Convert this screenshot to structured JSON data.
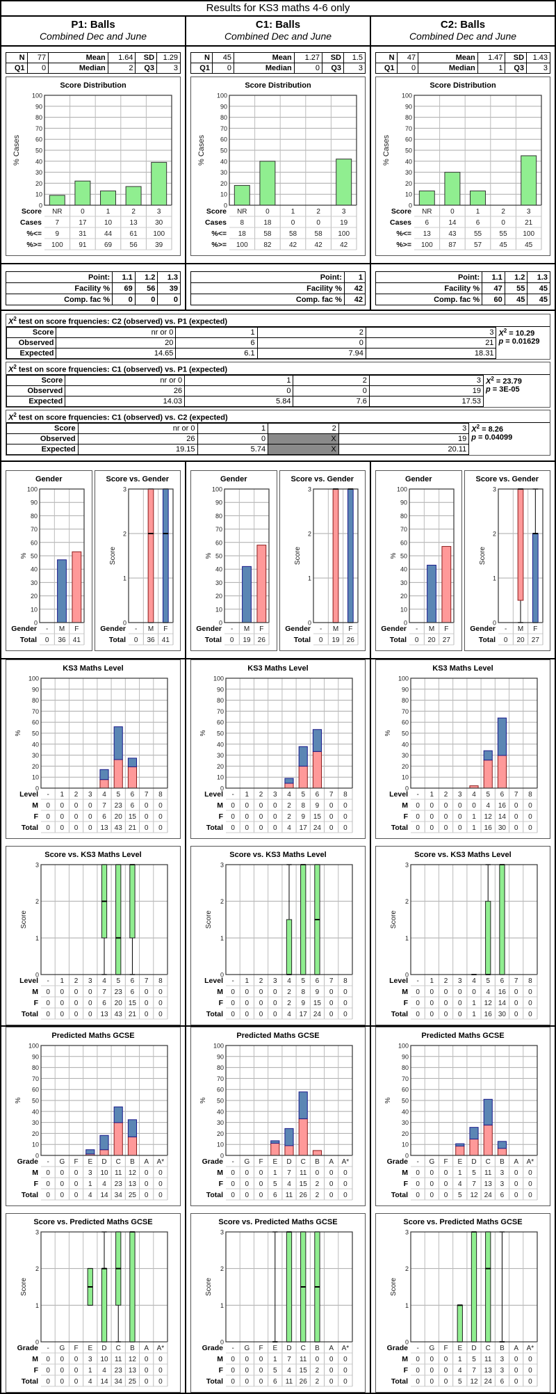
{
  "title": "Results for KS3 maths 4-6 only",
  "colors": {
    "green": "#90ee90",
    "male": "#5b86b4",
    "female": "#ff9999",
    "shade": "#8a8a8a",
    "grid": "#c8c8c8"
  },
  "columns": [
    {
      "id": "p1",
      "title": "P1: Balls",
      "subtitle": "Combined Dec and June",
      "stats": {
        "N": "77",
        "Mean": "1.64",
        "SD": "1.29",
        "Q1": "0",
        "Median": "2",
        "Q3": "3"
      },
      "distribution": {
        "title": "Score Distribution",
        "ylabel": "% Cases",
        "scores": [
          "NR",
          "0",
          "1",
          "2",
          "3"
        ],
        "cases": [
          "7",
          "17",
          "10",
          "13",
          "30"
        ],
        "pct_le": [
          "9",
          "31",
          "44",
          "61",
          "100"
        ],
        "pct_ge": [
          "100",
          "91",
          "69",
          "56",
          "39"
        ],
        "pct": [
          9,
          22,
          13,
          17,
          39
        ]
      },
      "facility": {
        "points": [
          "1.1",
          "1.2",
          "1.3"
        ],
        "facility": [
          "69",
          "56",
          "39"
        ],
        "comp": [
          "0",
          "0",
          "0"
        ]
      },
      "gender": {
        "pct": {
          "-": 0,
          "M": 47,
          "F": 53
        },
        "totals": [
          "0",
          "36",
          "41"
        ],
        "boxes": [
          null,
          {
            "q1": 0,
            "median": 2,
            "q3": 3,
            "min": 0,
            "max": 3
          },
          {
            "q1": 0,
            "median": 2,
            "q3": 3,
            "min": 0,
            "max": 3
          }
        ]
      },
      "ks3": {
        "M": [
          "0",
          "0",
          "0",
          "0",
          "7",
          "23",
          "6",
          "0",
          "0"
        ],
        "F": [
          "0",
          "0",
          "0",
          "0",
          "6",
          "20",
          "15",
          "0",
          "0"
        ],
        "Total": [
          "0",
          "0",
          "0",
          "0",
          "13",
          "43",
          "21",
          "0",
          "0"
        ],
        "boxes": [
          null,
          null,
          null,
          null,
          {
            "q1": 1,
            "median": 2,
            "q3": 3,
            "min": 0,
            "max": 3
          },
          {
            "q1": 0,
            "median": 1,
            "q3": 3,
            "min": 0,
            "max": 3
          },
          {
            "q1": 1,
            "median": 3,
            "q3": 3,
            "min": 0,
            "max": 3
          },
          null,
          null
        ]
      },
      "gcse": {
        "M": [
          "0",
          "0",
          "0",
          "3",
          "10",
          "11",
          "12",
          "0",
          "0"
        ],
        "F": [
          "0",
          "0",
          "0",
          "1",
          "4",
          "23",
          "13",
          "0",
          "0"
        ],
        "Total": [
          "0",
          "0",
          "0",
          "4",
          "14",
          "34",
          "25",
          "0",
          "0"
        ],
        "boxes": [
          null,
          null,
          null,
          {
            "q1": 1,
            "median": 1.5,
            "q3": 2,
            "min": 1,
            "max": 2
          },
          {
            "q1": 0,
            "median": 2,
            "q3": 2,
            "min": 0,
            "max": 3
          },
          {
            "q1": 1,
            "median": 2,
            "q3": 3,
            "min": 0,
            "max": 3
          },
          {
            "q1": 0,
            "median": 3,
            "q3": 3,
            "min": 0,
            "max": 3
          },
          null,
          null
        ]
      }
    },
    {
      "id": "c1",
      "title": "C1: Balls",
      "subtitle": "Combined Dec and June",
      "stats": {
        "N": "45",
        "Mean": "1.27",
        "SD": "1.5",
        "Q1": "0",
        "Median": "0",
        "Q3": "3"
      },
      "distribution": {
        "title": "Score Distribution",
        "ylabel": "% Cases",
        "scores": [
          "NR",
          "0",
          "1",
          "2",
          "3"
        ],
        "cases": [
          "8",
          "18",
          "0",
          "0",
          "19"
        ],
        "pct_le": [
          "18",
          "58",
          "58",
          "58",
          "100"
        ],
        "pct_ge": [
          "100",
          "82",
          "42",
          "42",
          "42"
        ],
        "pct": [
          18,
          40,
          0,
          0,
          42
        ]
      },
      "facility": {
        "points": [
          "1"
        ],
        "facility": [
          "42"
        ],
        "comp": [
          "42"
        ]
      },
      "gender": {
        "pct": {
          "-": 0,
          "M": 42,
          "F": 58
        },
        "totals": [
          "0",
          "19",
          "26"
        ],
        "boxes": [
          null,
          {
            "q1": 0,
            "median": 3,
            "q3": 3,
            "min": 0,
            "max": 3
          },
          {
            "q1": 0,
            "median": 3,
            "q3": 3,
            "min": 0,
            "max": 3
          }
        ]
      },
      "ks3": {
        "M": [
          "0",
          "0",
          "0",
          "0",
          "2",
          "8",
          "9",
          "0",
          "0"
        ],
        "F": [
          "0",
          "0",
          "0",
          "0",
          "2",
          "9",
          "15",
          "0",
          "0"
        ],
        "Total": [
          "0",
          "0",
          "0",
          "0",
          "4",
          "17",
          "24",
          "0",
          "0"
        ],
        "boxes": [
          null,
          null,
          null,
          null,
          {
            "q1": 0,
            "median": 0,
            "q3": 1.5,
            "min": 0,
            "max": 3
          },
          {
            "q1": 0,
            "median": 3,
            "q3": 3,
            "min": 0,
            "max": 3
          },
          {
            "q1": 0,
            "median": 1.5,
            "q3": 3,
            "min": 0,
            "max": 3
          },
          null,
          null
        ]
      },
      "gcse": {
        "M": [
          "0",
          "0",
          "0",
          "1",
          "7",
          "11",
          "0",
          "0",
          "0"
        ],
        "F": [
          "0",
          "0",
          "0",
          "5",
          "4",
          "15",
          "2",
          "0",
          "0"
        ],
        "Total": [
          "0",
          "0",
          "0",
          "6",
          "11",
          "26",
          "2",
          "0",
          "0"
        ],
        "boxes": [
          null,
          null,
          null,
          {
            "q1": 0,
            "median": 0,
            "q3": 0,
            "min": 0,
            "max": 3
          },
          {
            "q1": 0,
            "median": 3,
            "q3": 3,
            "min": 0,
            "max": 3
          },
          {
            "q1": 0,
            "median": 1.5,
            "q3": 3,
            "min": 0,
            "max": 3
          },
          {
            "q1": 0,
            "median": 1.5,
            "q3": 3,
            "min": 0,
            "max": 3
          },
          null,
          null
        ]
      }
    },
    {
      "id": "c2",
      "title": "C2: Balls",
      "subtitle": "Combined Dec and June",
      "stats": {
        "N": "47",
        "Mean": "1.47",
        "SD": "1.43",
        "Q1": "0",
        "Median": "1",
        "Q3": "3"
      },
      "distribution": {
        "title": "Score Distribution",
        "ylabel": "% Cases",
        "scores": [
          "NR",
          "0",
          "1",
          "2",
          "3"
        ],
        "cases": [
          "6",
          "14",
          "6",
          "0",
          "21"
        ],
        "pct_le": [
          "13",
          "43",
          "55",
          "55",
          "100"
        ],
        "pct_ge": [
          "100",
          "87",
          "57",
          "45",
          "45"
        ],
        "pct": [
          13,
          30,
          13,
          0,
          45
        ]
      },
      "facility": {
        "points": [
          "1.1",
          "1.2",
          "1.3"
        ],
        "facility": [
          "47",
          "55",
          "45"
        ],
        "comp": [
          "60",
          "45",
          "45"
        ]
      },
      "gender": {
        "pct": {
          "-": 0,
          "M": 43,
          "F": 57
        },
        "totals": [
          "0",
          "20",
          "27"
        ],
        "boxes": [
          null,
          {
            "q1": 0.5,
            "median": 3,
            "q3": 3,
            "min": 0,
            "max": 3
          },
          {
            "q1": 0,
            "median": 2,
            "q3": 2,
            "min": 0,
            "max": 3
          }
        ]
      },
      "ks3": {
        "M": [
          "0",
          "0",
          "0",
          "0",
          "0",
          "4",
          "16",
          "0",
          "0"
        ],
        "F": [
          "0",
          "0",
          "0",
          "0",
          "1",
          "12",
          "14",
          "0",
          "0"
        ],
        "Total": [
          "0",
          "0",
          "0",
          "0",
          "1",
          "16",
          "30",
          "0",
          "0"
        ],
        "boxes": [
          null,
          null,
          null,
          null,
          {
            "q1": 0,
            "median": 0,
            "q3": 0,
            "min": 0,
            "max": 0
          },
          {
            "q1": 0,
            "median": 0,
            "q3": 2,
            "min": 0,
            "max": 3
          },
          {
            "q1": 0,
            "median": 3,
            "q3": 3,
            "min": 0,
            "max": 3
          },
          null,
          null
        ]
      },
      "gcse": {
        "M": [
          "0",
          "0",
          "0",
          "1",
          "5",
          "11",
          "3",
          "0",
          "0"
        ],
        "F": [
          "0",
          "0",
          "0",
          "4",
          "7",
          "13",
          "3",
          "0",
          "0"
        ],
        "Total": [
          "0",
          "0",
          "0",
          "5",
          "12",
          "24",
          "6",
          "0",
          "0"
        ],
        "boxes": [
          null,
          null,
          null,
          {
            "q1": 0,
            "median": 1,
            "q3": 1,
            "min": 0,
            "max": 1
          },
          {
            "q1": 0,
            "median": 3,
            "q3": 3,
            "min": 0,
            "max": 3
          },
          {
            "q1": 0,
            "median": 2,
            "q3": 3,
            "min": 0,
            "max": 3
          },
          {
            "q1": 0,
            "median": 0,
            "q3": 0,
            "min": 0,
            "max": 3
          },
          null,
          null
        ]
      }
    }
  ],
  "labels": {
    "N": "N",
    "Mean": "Mean",
    "SD": "SD",
    "Q1": "Q1",
    "Median": "Median",
    "Q3": "Q3",
    "score": "Score",
    "cases": "Cases",
    "pct_le": "%<=",
    "pct_ge": "%>=",
    "point": "Point:",
    "facility": "Facility %",
    "comp": "Comp. fac %",
    "gender_title": "Gender",
    "score_vs_gender": "Score vs. Gender",
    "gender_row": "Gender",
    "total": "Total",
    "genders": [
      "-",
      "M",
      "F"
    ],
    "pct_axis": "%",
    "score_axis": "Score",
    "ks3_title": "KS3 Maths Level",
    "score_vs_ks3": "Score vs. KS3 Maths Level",
    "level": "Level",
    "levels": [
      "-",
      "1",
      "2",
      "3",
      "4",
      "5",
      "6",
      "7",
      "8"
    ],
    "gcse_title": "Predicted Maths GCSE",
    "score_vs_gcse": "Score vs. Predicted Maths GCSE",
    "grade": "Grade",
    "grades": [
      "-",
      "G",
      "F",
      "E",
      "D",
      "C",
      "B",
      "A",
      "A*"
    ],
    "M": "M",
    "F": "F",
    "Total": "Total"
  },
  "chi_tests": [
    {
      "title_prefix": "X",
      "title": " test on score frquencies: C2 (observed) vs. P1 (expected)",
      "scores": [
        "nr or 0",
        "1",
        "2",
        "3"
      ],
      "observed": [
        "20",
        "6",
        "0",
        "21"
      ],
      "expected": [
        "14.65",
        "6.1",
        "7.94",
        "18.31"
      ],
      "shaded": [
        false,
        false,
        false,
        false
      ],
      "chi2": "= 10.29",
      "p": "= 0.01629"
    },
    {
      "title_prefix": "X",
      "title": " test on score frquencies: C1 (observed) vs. P1 (expected)",
      "scores": [
        "nr or 0",
        "1",
        "2",
        "3"
      ],
      "observed": [
        "26",
        "0",
        "0",
        "19"
      ],
      "expected": [
        "14.03",
        "5.84",
        "7.6",
        "17.53"
      ],
      "shaded": [
        false,
        false,
        false,
        false
      ],
      "chi2": "= 23.79",
      "p": "= 3E-05"
    },
    {
      "title_prefix": "X",
      "title": " test on score frquencies: C1 (observed) vs. C2 (expected)",
      "scores": [
        "nr or 0",
        "1",
        "2",
        "3"
      ],
      "observed": [
        "26",
        "0",
        "X",
        "19"
      ],
      "expected": [
        "19.15",
        "5.74",
        "X",
        "20.11"
      ],
      "shaded": [
        false,
        false,
        true,
        false
      ],
      "chi2": "= 8.26",
      "p": "= 0.04099"
    }
  ],
  "chi_labels": {
    "score": "Score",
    "observed": "Observed",
    "expected": "Expected"
  },
  "chart_data": [
    {
      "type": "bar",
      "title": "Score Distribution (P1)",
      "categories": [
        "NR",
        "0",
        "1",
        "2",
        "3"
      ],
      "values": [
        9,
        22,
        13,
        17,
        39
      ],
      "ylabel": "% Cases",
      "ylim": [
        0,
        100
      ]
    },
    {
      "type": "bar",
      "title": "Score Distribution (C1)",
      "categories": [
        "NR",
        "0",
        "1",
        "2",
        "3"
      ],
      "values": [
        18,
        40,
        0,
        0,
        42
      ],
      "ylabel": "% Cases",
      "ylim": [
        0,
        100
      ]
    },
    {
      "type": "bar",
      "title": "Score Distribution (C2)",
      "categories": [
        "NR",
        "0",
        "1",
        "2",
        "3"
      ],
      "values": [
        13,
        30,
        13,
        0,
        45
      ],
      "ylabel": "% Cases",
      "ylim": [
        0,
        100
      ]
    },
    {
      "type": "bar",
      "title": "Gender",
      "categories": [
        "-",
        "M",
        "F"
      ],
      "series": [
        {
          "name": "P1",
          "values": [
            0,
            47,
            53
          ]
        },
        {
          "name": "C1",
          "values": [
            0,
            42,
            58
          ]
        },
        {
          "name": "C2",
          "values": [
            0,
            43,
            57
          ]
        }
      ],
      "ylabel": "%",
      "ylim": [
        0,
        100
      ]
    },
    {
      "type": "bar",
      "title": "KS3 Maths Level (stacked F bottom, M top, % of total)",
      "categories": [
        "-",
        "1",
        "2",
        "3",
        "4",
        "5",
        "6",
        "7",
        "8"
      ],
      "ylabel": "%",
      "ylim": [
        0,
        100
      ]
    },
    {
      "type": "bar",
      "title": "Predicted Maths GCSE (stacked F bottom, M top, % of total)",
      "categories": [
        "-",
        "G",
        "F",
        "E",
        "D",
        "C",
        "B",
        "A",
        "A*"
      ],
      "ylabel": "%",
      "ylim": [
        0,
        100
      ]
    }
  ]
}
